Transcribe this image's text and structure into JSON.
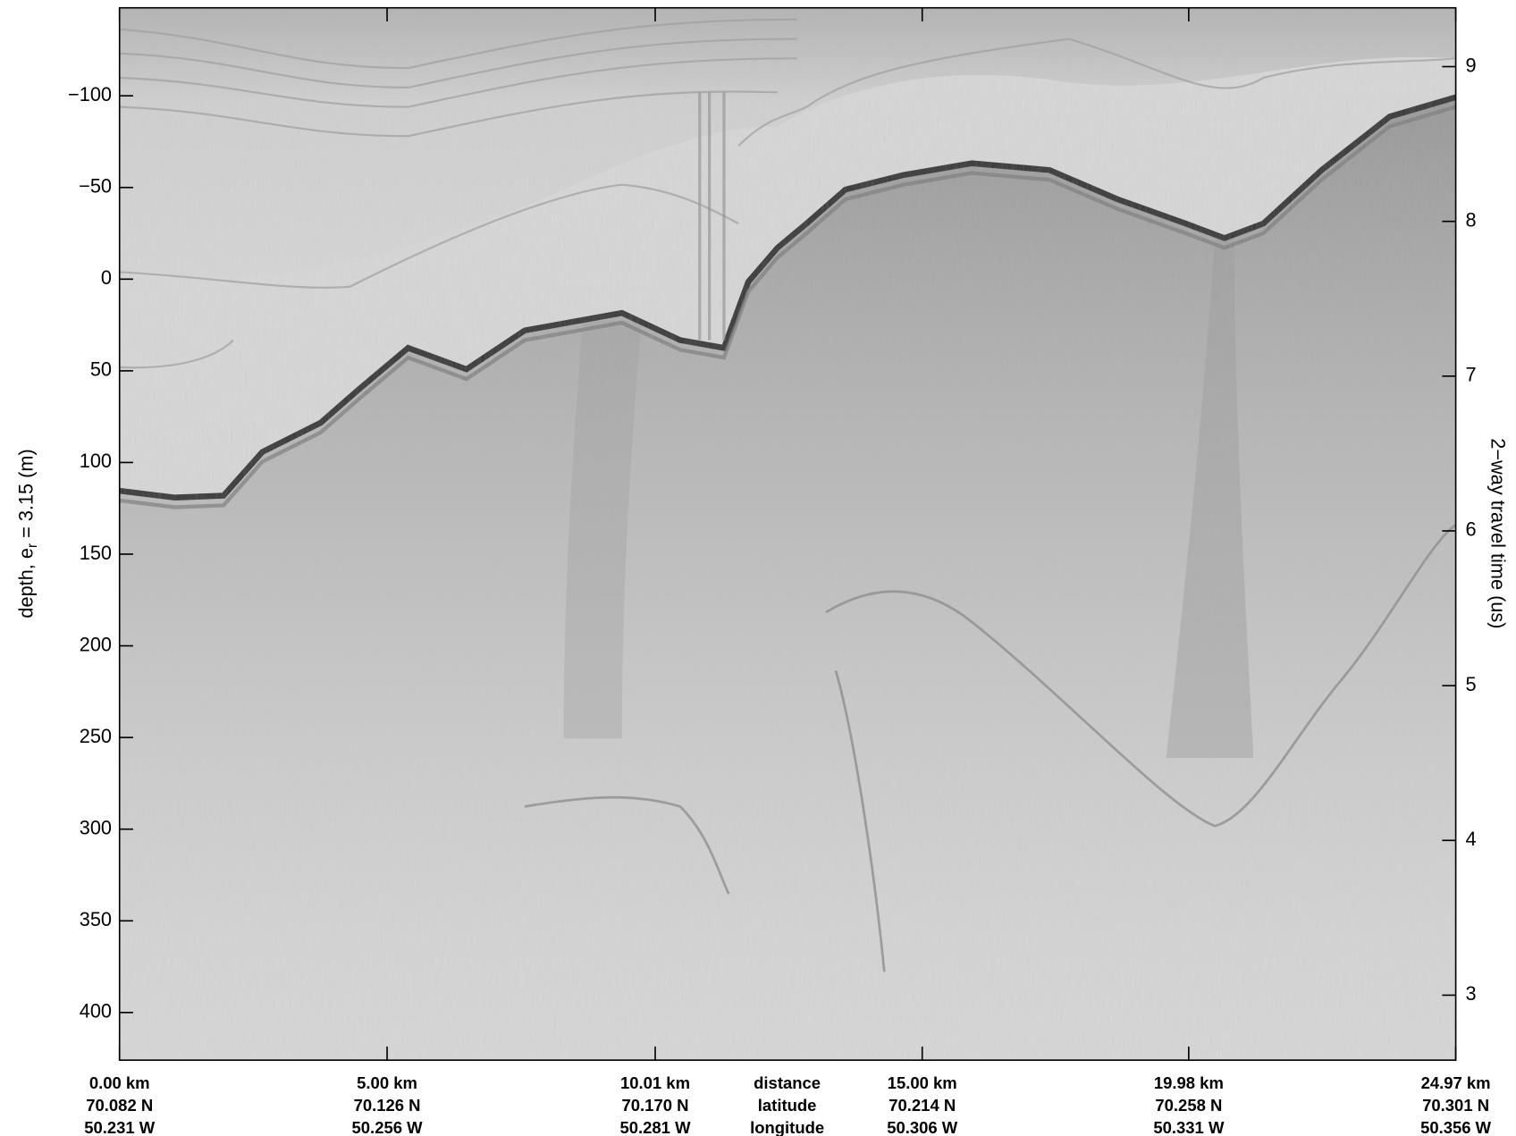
{
  "chart_data": {
    "type": "radargram",
    "ylabel": [
      "depth, e",
      "r",
      " = 3.15 (m)"
    ],
    "y2label": "2−way travel time (us)",
    "xlim": [
      0,
      24.97
    ],
    "xticks": [
      {
        "value": 0,
        "label": "0.00 km"
      },
      {
        "value": 5.0,
        "label": "5.00 km"
      },
      {
        "value": 10.01,
        "label": "10.01 km"
      },
      {
        "value": 15.0,
        "label": "15.00 km"
      },
      {
        "value": 19.98,
        "label": "19.98 km"
      },
      {
        "value": 24.97,
        "label": "24.97 km"
      }
    ],
    "latitude_labels": [
      "70.082 N",
      "70.126 N",
      "70.170 N",
      "70.214 N",
      "70.258 N",
      "70.301 N"
    ],
    "longitude_labels": [
      "50.231 W",
      "50.256 W",
      "50.281 W",
      "50.306 W",
      "50.331 W",
      "50.356 W"
    ],
    "x_row_labels": [
      "distance",
      "latitude",
      "longitude"
    ],
    "ylim": [
      -148,
      426
    ],
    "yticks": [
      {
        "value": -100,
        "label": "−100"
      },
      {
        "value": -50,
        "label": "−50"
      },
      0,
      50,
      100,
      150,
      200,
      250,
      300,
      350,
      400
    ],
    "y2lim": [
      2.58,
      9.38
    ],
    "y2ticks": [
      3,
      4,
      5,
      6,
      7,
      8,
      9
    ]
  }
}
